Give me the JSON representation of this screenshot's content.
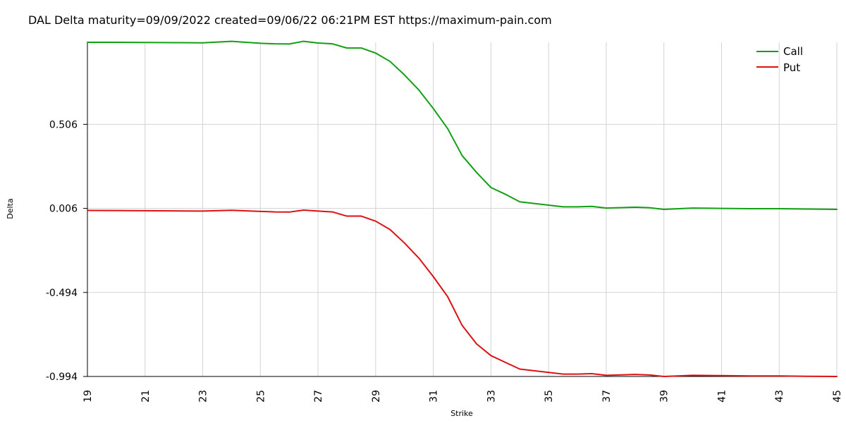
{
  "title": "DAL Delta maturity=09/09/2022 created=09/06/22 06:21PM EST https://maximum-pain.com",
  "chart_data": {
    "type": "line",
    "xlabel": "Strike",
    "ylabel": "Delta",
    "xlim": [
      19,
      45
    ],
    "ylim": [
      -0.994,
      0.994
    ],
    "yticks": [
      "0.506",
      "0.006",
      "-0.494",
      "-0.994"
    ],
    "xticks": [
      "19",
      "21",
      "23",
      "25",
      "27",
      "29",
      "31",
      "33",
      "35",
      "37",
      "39",
      "41",
      "43",
      "45"
    ],
    "grid": true,
    "legend_position": "top-right",
    "x": [
      19,
      20,
      21,
      22,
      23,
      24,
      25,
      25.5,
      26,
      26.5,
      27,
      27.5,
      28,
      28.5,
      29,
      29.5,
      30,
      30.5,
      31,
      31.5,
      32,
      32.5,
      33,
      33.5,
      34,
      35,
      35.5,
      36,
      36.5,
      37,
      38,
      38.5,
      39,
      40,
      41,
      42,
      43,
      44,
      45
    ],
    "series": [
      {
        "name": "Call",
        "color": "#11a011",
        "values": [
          0.994,
          0.994,
          0.993,
          0.992,
          0.991,
          1.0,
          0.988,
          0.985,
          0.984,
          1.0,
          0.99,
          0.985,
          0.96,
          0.96,
          0.93,
          0.88,
          0.8,
          0.71,
          0.6,
          0.48,
          0.32,
          0.22,
          0.13,
          0.09,
          0.045,
          0.025,
          0.015,
          0.015,
          0.018,
          0.008,
          0.013,
          0.01,
          0.0,
          0.008,
          0.006,
          0.004,
          0.004,
          0.002,
          0.0
        ]
      },
      {
        "name": "Put",
        "color": "#dd1111",
        "values": [
          -0.006,
          -0.007,
          -0.008,
          -0.009,
          -0.01,
          -0.005,
          -0.012,
          -0.015,
          -0.016,
          -0.004,
          -0.01,
          -0.015,
          -0.04,
          -0.04,
          -0.07,
          -0.12,
          -0.2,
          -0.29,
          -0.4,
          -0.52,
          -0.69,
          -0.8,
          -0.87,
          -0.91,
          -0.95,
          -0.97,
          -0.98,
          -0.98,
          -0.977,
          -0.987,
          -0.982,
          -0.985,
          -0.994,
          -0.987,
          -0.989,
          -0.991,
          -0.991,
          -0.993,
          -0.994
        ]
      }
    ]
  }
}
